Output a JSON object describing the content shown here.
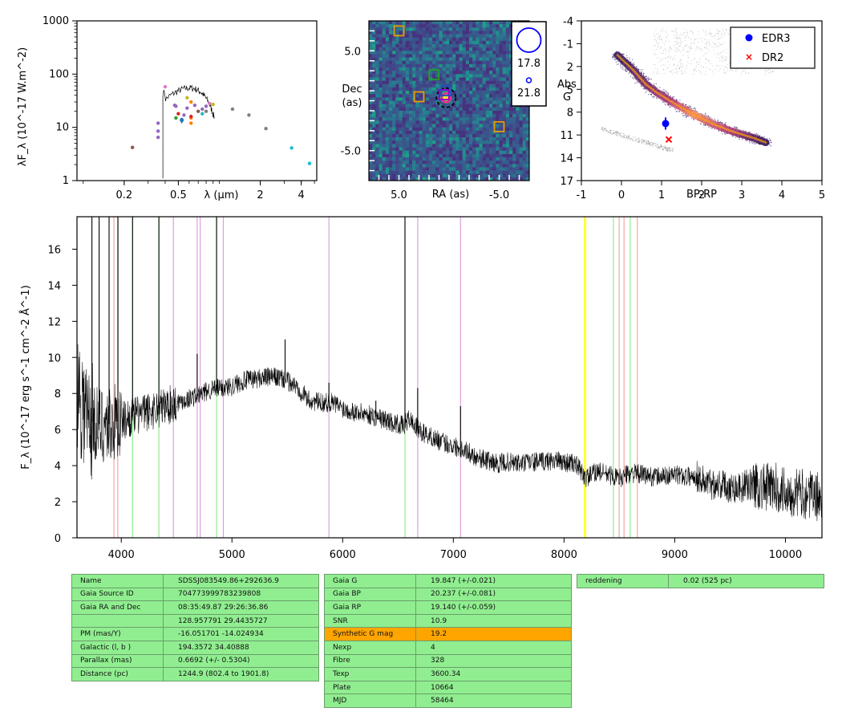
{
  "sed": {
    "ylabel": "λF_λ (10^-17 W.m^-2)",
    "xlabel": "λ (μm)",
    "yticks": [
      "1",
      "10",
      "100",
      "1000"
    ],
    "xticks": [
      {
        "v": 0.2,
        "t": "0.2"
      },
      {
        "v": 0.5,
        "t": "0.5"
      },
      {
        "v": 2,
        "t": "2"
      },
      {
        "v": 4,
        "t": "4"
      }
    ],
    "xlim": [
      0.09,
      5.2
    ],
    "ylim": [
      1,
      1000
    ],
    "points": [
      {
        "x": 0.23,
        "y": 4.2,
        "c": "#8c564b"
      },
      {
        "x": 0.355,
        "y": 12,
        "c": "#9467bd"
      },
      {
        "x": 0.355,
        "y": 8.5,
        "c": "#9467bd"
      },
      {
        "x": 0.355,
        "y": 6.5,
        "c": "#9467bd"
      },
      {
        "x": 0.4,
        "y": 58,
        "c": "#e377c2"
      },
      {
        "x": 0.47,
        "y": 26,
        "c": "#9467bd"
      },
      {
        "x": 0.48,
        "y": 25,
        "c": "#9467bd"
      },
      {
        "x": 0.48,
        "y": 15,
        "c": "#2ca02c"
      },
      {
        "x": 0.5,
        "y": 18,
        "c": "#d62728"
      },
      {
        "x": 0.53,
        "y": 14,
        "c": "#1f77b4"
      },
      {
        "x": 0.55,
        "y": 17,
        "c": "#9467bd"
      },
      {
        "x": 0.58,
        "y": 23,
        "c": "#9467bd"
      },
      {
        "x": 0.58,
        "y": 36,
        "c": "#bcbd22"
      },
      {
        "x": 0.62,
        "y": 30,
        "c": "#ff7f0e"
      },
      {
        "x": 0.62,
        "y": 15,
        "c": "#ff7f0e"
      },
      {
        "x": 0.62,
        "y": 12,
        "c": "#ff7f0e"
      },
      {
        "x": 0.62,
        "y": 16,
        "c": "#d62728"
      },
      {
        "x": 0.66,
        "y": 26,
        "c": "#9467bd"
      },
      {
        "x": 0.7,
        "y": 20,
        "c": "#8c564b"
      },
      {
        "x": 0.75,
        "y": 18,
        "c": "#17becf"
      },
      {
        "x": 0.75,
        "y": 22,
        "c": "#9467bd"
      },
      {
        "x": 0.8,
        "y": 25,
        "c": "#9467bd"
      },
      {
        "x": 0.85,
        "y": 28,
        "c": "#e377c2"
      },
      {
        "x": 0.9,
        "y": 27,
        "c": "#bcbd22"
      },
      {
        "x": 0.8,
        "y": 20,
        "c": "#7f7f7f"
      },
      {
        "x": 1.25,
        "y": 22,
        "c": "#7f7f7f"
      },
      {
        "x": 1.65,
        "y": 17,
        "c": "#7f7f7f"
      },
      {
        "x": 2.2,
        "y": 9.5,
        "c": "#7f7f7f"
      },
      {
        "x": 3.4,
        "y": 4.1,
        "c": "#17becf"
      },
      {
        "x": 4.6,
        "y": 2.1,
        "c": "#17becf"
      }
    ],
    "triangle": {
      "x": 0.53,
      "y": 13,
      "c": "#1f77b4"
    }
  },
  "img": {
    "ylabel_top": "Dec",
    "ylabel_bottom": "(as)",
    "xlabel": "RA (as)",
    "xticks": [
      {
        "v": 5.0,
        "t": "5.0"
      },
      {
        "v": -5.0,
        "t": "-5.0"
      }
    ],
    "yticks": [
      {
        "v": 5.0,
        "t": "5.0"
      },
      {
        "v": -5.0,
        "t": "-5.0"
      }
    ],
    "xlim": [
      8,
      -8
    ],
    "ylim": [
      -8,
      8
    ],
    "legend": [
      "17.8",
      "21.8"
    ],
    "squares": [
      {
        "x": 5.0,
        "y": 7.0,
        "c": "#e69f00"
      },
      {
        "x": 3.0,
        "y": 0.4,
        "c": "#e69f00"
      },
      {
        "x": -5.0,
        "y": -2.6,
        "c": "#e69f00"
      },
      {
        "x": 1.5,
        "y": 2.6,
        "c": "#22a022"
      },
      {
        "x": 0.5,
        "y": 0.6,
        "c": "#9400d3"
      },
      {
        "x": 0.3,
        "y": 1.0,
        "c": "#1f4fbf"
      }
    ]
  },
  "hrd": {
    "xlabel": "BP-RP",
    "ylabel_top": "Abs",
    "ylabel_bottom": "G",
    "xticks": [
      "-1",
      "0",
      "1",
      "2",
      "3",
      "4",
      "5"
    ],
    "yticks": [
      "-4",
      "-1",
      "2",
      "5",
      "8",
      "11",
      "14",
      "17"
    ],
    "xlim": [
      -1,
      5
    ],
    "ylim": [
      17,
      -4
    ],
    "legend": [
      {
        "label": "EDR3",
        "marker": "dot",
        "color": "#0000ff"
      },
      {
        "label": "DR2",
        "marker": "x",
        "color": "#ff0000"
      }
    ],
    "edr3": {
      "x": 1.1,
      "y": 9.5,
      "err": 0.8
    },
    "dr2": {
      "x": 1.18,
      "y": 11.6
    }
  },
  "chart_data": {
    "type": "line",
    "ylabel": "F_λ (10^-17 erg s^-1 cm^-2 Å^-1)",
    "xlim": [
      3600,
      10330
    ],
    "ylim": [
      0,
      17.8
    ],
    "xticks": [
      4000,
      5000,
      6000,
      7000,
      8000,
      9000,
      10000
    ],
    "yticks": [
      0,
      2,
      4,
      6,
      8,
      10,
      12,
      14,
      16
    ],
    "continuum": [
      {
        "x": 3600,
        "y": 8.5
      },
      {
        "x": 3700,
        "y": 6.5
      },
      {
        "x": 3800,
        "y": 6.3
      },
      {
        "x": 3900,
        "y": 6.3
      },
      {
        "x": 4000,
        "y": 6.5
      },
      {
        "x": 4100,
        "y": 6.7
      },
      {
        "x": 4200,
        "y": 6.9
      },
      {
        "x": 4300,
        "y": 7.1
      },
      {
        "x": 4400,
        "y": 7.3
      },
      {
        "x": 4500,
        "y": 7.5
      },
      {
        "x": 4600,
        "y": 7.7
      },
      {
        "x": 4700,
        "y": 7.9
      },
      {
        "x": 4800,
        "y": 8.2
      },
      {
        "x": 4900,
        "y": 8.3
      },
      {
        "x": 5000,
        "y": 8.4
      },
      {
        "x": 5100,
        "y": 8.7
      },
      {
        "x": 5200,
        "y": 8.8
      },
      {
        "x": 5300,
        "y": 8.9
      },
      {
        "x": 5400,
        "y": 8.9
      },
      {
        "x": 5500,
        "y": 8.7
      },
      {
        "x": 5600,
        "y": 8.3
      },
      {
        "x": 5700,
        "y": 7.6
      },
      {
        "x": 5800,
        "y": 7.5
      },
      {
        "x": 5900,
        "y": 7.5
      },
      {
        "x": 6000,
        "y": 7.2
      },
      {
        "x": 6100,
        "y": 7.0
      },
      {
        "x": 6200,
        "y": 6.9
      },
      {
        "x": 6300,
        "y": 6.7
      },
      {
        "x": 6400,
        "y": 6.5
      },
      {
        "x": 6500,
        "y": 6.3
      },
      {
        "x": 6550,
        "y": 6.2
      },
      {
        "x": 6600,
        "y": 6.6
      },
      {
        "x": 6700,
        "y": 5.9
      },
      {
        "x": 6800,
        "y": 5.6
      },
      {
        "x": 6900,
        "y": 5.3
      },
      {
        "x": 7000,
        "y": 5.1
      },
      {
        "x": 7100,
        "y": 4.9
      },
      {
        "x": 7200,
        "y": 4.5
      },
      {
        "x": 7300,
        "y": 4.3
      },
      {
        "x": 7400,
        "y": 4.1
      },
      {
        "x": 7500,
        "y": 4.2
      },
      {
        "x": 7600,
        "y": 4.1
      },
      {
        "x": 7700,
        "y": 4.2
      },
      {
        "x": 7800,
        "y": 4.2
      },
      {
        "x": 7900,
        "y": 4.3
      },
      {
        "x": 8000,
        "y": 4.2
      },
      {
        "x": 8100,
        "y": 4.1
      },
      {
        "x": 8200,
        "y": 3.3
      },
      {
        "x": 8300,
        "y": 3.7
      },
      {
        "x": 8400,
        "y": 3.5
      },
      {
        "x": 8500,
        "y": 3.3
      },
      {
        "x": 8600,
        "y": 3.6
      },
      {
        "x": 8700,
        "y": 3.5
      },
      {
        "x": 8800,
        "y": 3.4
      },
      {
        "x": 8900,
        "y": 3.4
      },
      {
        "x": 9000,
        "y": 3.5
      },
      {
        "x": 9100,
        "y": 3.4
      },
      {
        "x": 9200,
        "y": 3.4
      },
      {
        "x": 9300,
        "y": 3.0
      },
      {
        "x": 9400,
        "y": 3.0
      },
      {
        "x": 9500,
        "y": 2.8
      },
      {
        "x": 9600,
        "y": 2.8
      },
      {
        "x": 9700,
        "y": 3.0
      },
      {
        "x": 9800,
        "y": 2.8
      },
      {
        "x": 9900,
        "y": 2.8
      },
      {
        "x": 10000,
        "y": 2.6
      },
      {
        "x": 10100,
        "y": 2.5
      },
      {
        "x": 10200,
        "y": 2.4
      },
      {
        "x": 10330,
        "y": 2.2
      }
    ],
    "emission": [
      {
        "x": 3735,
        "y": 17.8
      },
      {
        "x": 3800,
        "y": 17.8
      },
      {
        "x": 3890,
        "y": 17.8
      },
      {
        "x": 3970,
        "y": 17.8
      },
      {
        "x": 4102,
        "y": 17.8
      },
      {
        "x": 4340,
        "y": 17.8
      },
      {
        "x": 4861,
        "y": 17.8
      },
      {
        "x": 6563,
        "y": 17.8
      },
      {
        "x": 4686,
        "y": 10.2
      },
      {
        "x": 5876,
        "y": 8.6
      },
      {
        "x": 5480,
        "y": 11.0
      },
      {
        "x": 6678,
        "y": 8.3
      },
      {
        "x": 7065,
        "y": 7.3
      },
      {
        "x": 6300,
        "y": 7.6
      }
    ],
    "vlines": [
      {
        "x": 3934,
        "c": "#f4a6a6"
      },
      {
        "x": 3968,
        "c": "#f4a6a6"
      },
      {
        "x": 4102,
        "c": "#90ee90"
      },
      {
        "x": 4340,
        "c": "#90ee90"
      },
      {
        "x": 4861,
        "c": "#90ee90"
      },
      {
        "x": 6563,
        "c": "#90ee90"
      },
      {
        "x": 4471,
        "c": "#dda0dd"
      },
      {
        "x": 4686,
        "c": "#dda0dd"
      },
      {
        "x": 4713,
        "c": "#dda0dd"
      },
      {
        "x": 4922,
        "c": "#dda0dd"
      },
      {
        "x": 5876,
        "c": "#dda0dd"
      },
      {
        "x": 6678,
        "c": "#dda0dd"
      },
      {
        "x": 7065,
        "c": "#dda0dd"
      },
      {
        "x": 8183,
        "c": "#ffff00"
      },
      {
        "x": 8195,
        "c": "#ffff00"
      },
      {
        "x": 8446,
        "c": "#90ee90"
      },
      {
        "x": 8598,
        "c": "#90ee90"
      },
      {
        "x": 8498,
        "c": "#f4a6a6"
      },
      {
        "x": 8542,
        "c": "#f4a6a6"
      },
      {
        "x": 8662,
        "c": "#f4a6a6"
      }
    ]
  },
  "tables": {
    "t1": [
      {
        "k": "Name",
        "v": "SDSSJ083549.86+292636.9"
      },
      {
        "k": "Gaia Source ID",
        "v": "704773999783239808"
      },
      {
        "k": "Gaia RA and Dec",
        "v": "08:35:49.87    29:26:36.86"
      },
      {
        "k": "",
        "v": "128.957791    29.4435727"
      },
      {
        "k": "PM (mas/Y)",
        "v": "-16.051701    -14.024934"
      },
      {
        "k": "Galactic (l, b )",
        "v": "194.3572    34.40888"
      },
      {
        "k": "Parallax (mas)",
        "v": "0.6692 (+/- 0.5304)"
      },
      {
        "k": "Distance (pc)",
        "v": "1244.9 (802.4 to 1901.8)"
      }
    ],
    "t2": [
      {
        "k": "Gaia G",
        "v": "19.847 (+/-0.021)"
      },
      {
        "k": "Gaia BP",
        "v": "20.237 (+/-0.081)"
      },
      {
        "k": "Gaia RP",
        "v": "19.140 (+/-0.059)"
      },
      {
        "k": "SNR",
        "v": "10.9"
      },
      {
        "k": "Synthetic G mag",
        "v": "19.2",
        "hl": true
      },
      {
        "k": "Nexp",
        "v": "4"
      },
      {
        "k": "Fibre",
        "v": "328"
      },
      {
        "k": "Texp",
        "v": "3600.34"
      },
      {
        "k": "Plate",
        "v": "10664"
      },
      {
        "k": "MJD",
        "v": "58464"
      }
    ],
    "t3": [
      {
        "k": "reddening",
        "v": "0.02 (525 pc)"
      }
    ]
  }
}
